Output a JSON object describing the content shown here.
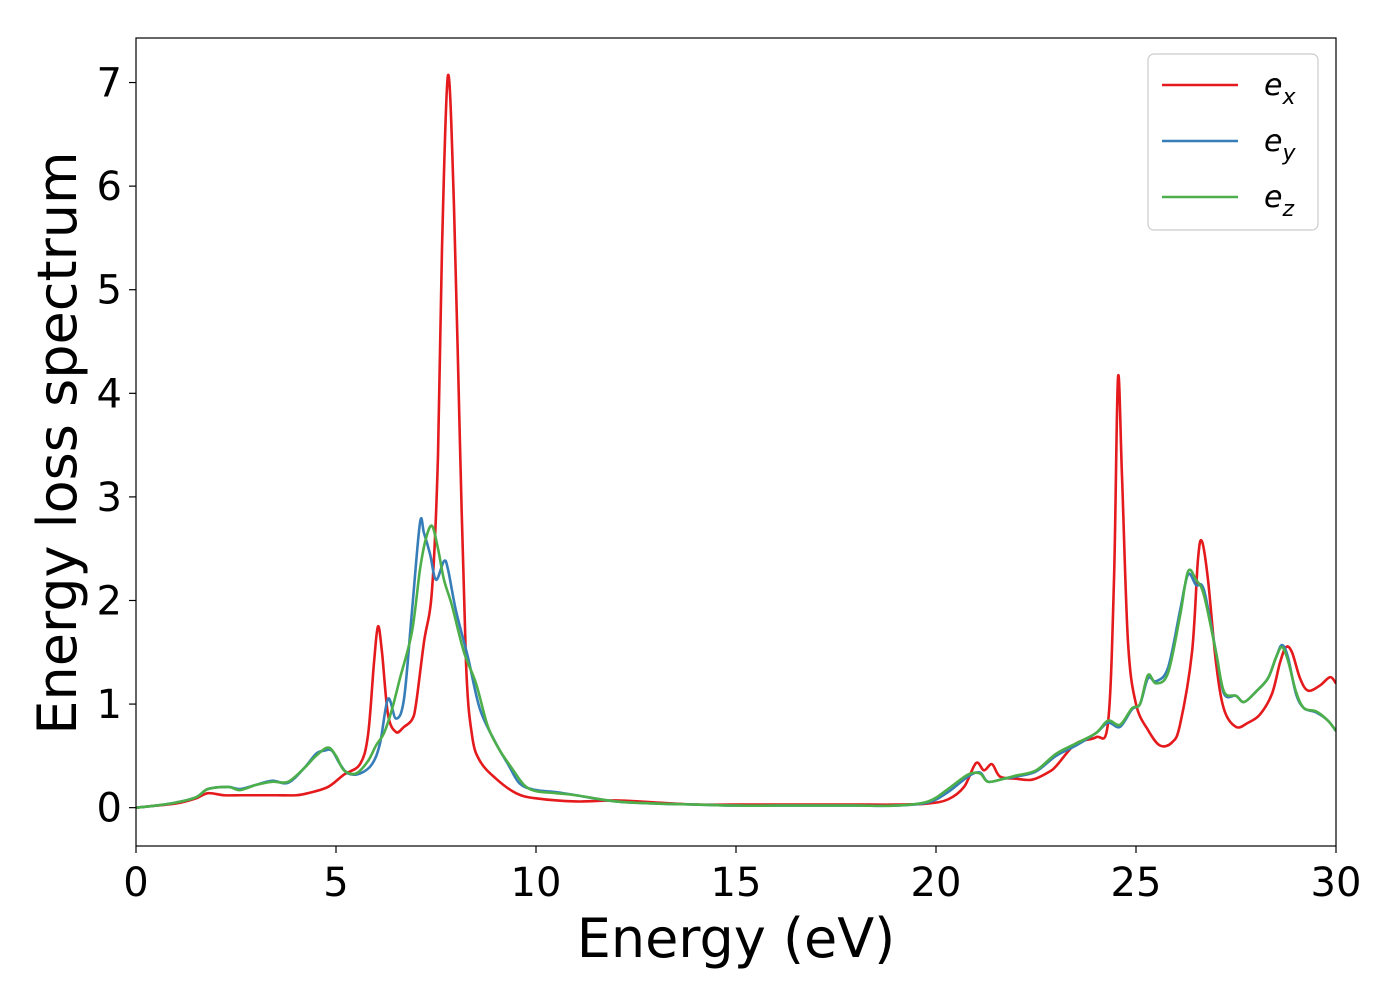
{
  "chart_data": {
    "type": "line",
    "xlabel": "Energy (eV)",
    "ylabel": "Energy loss spectrum",
    "xlim": [
      0,
      30
    ],
    "ylim": [
      -0.37,
      7.43
    ],
    "xticks": [
      0,
      5,
      10,
      15,
      20,
      25,
      30
    ],
    "yticks": [
      0,
      1,
      2,
      3,
      4,
      5,
      6,
      7
    ],
    "grid": false,
    "legend_position": "top-right",
    "series": [
      {
        "name": "e_x",
        "label_base": "e",
        "label_sub": "x",
        "color": "#e41a1c",
        "points": [
          [
            0,
            0
          ],
          [
            0.5,
            0.02
          ],
          [
            1.0,
            0.04
          ],
          [
            1.5,
            0.09
          ],
          [
            1.8,
            0.14
          ],
          [
            2.2,
            0.12
          ],
          [
            2.6,
            0.12
          ],
          [
            3.0,
            0.12
          ],
          [
            3.5,
            0.12
          ],
          [
            4.0,
            0.12
          ],
          [
            4.3,
            0.14
          ],
          [
            4.8,
            0.2
          ],
          [
            5.2,
            0.32
          ],
          [
            5.6,
            0.42
          ],
          [
            5.8,
            0.7
          ],
          [
            5.95,
            1.4
          ],
          [
            6.05,
            1.75
          ],
          [
            6.15,
            1.5
          ],
          [
            6.3,
            0.9
          ],
          [
            6.5,
            0.73
          ],
          [
            6.7,
            0.78
          ],
          [
            6.9,
            0.85
          ],
          [
            7.0,
            1.0
          ],
          [
            7.2,
            1.6
          ],
          [
            7.4,
            2.1
          ],
          [
            7.55,
            3.4
          ],
          [
            7.65,
            5.4
          ],
          [
            7.8,
            7.07
          ],
          [
            7.95,
            5.8
          ],
          [
            8.1,
            3.5
          ],
          [
            8.25,
            1.4
          ],
          [
            8.4,
            0.7
          ],
          [
            8.6,
            0.45
          ],
          [
            9.0,
            0.28
          ],
          [
            9.5,
            0.14
          ],
          [
            10.0,
            0.09
          ],
          [
            11.0,
            0.06
          ],
          [
            12.0,
            0.07
          ],
          [
            13.0,
            0.05
          ],
          [
            14.0,
            0.03
          ],
          [
            15.0,
            0.03
          ],
          [
            16.0,
            0.03
          ],
          [
            17.0,
            0.03
          ],
          [
            18.0,
            0.03
          ],
          [
            19.0,
            0.03
          ],
          [
            19.8,
            0.04
          ],
          [
            20.3,
            0.08
          ],
          [
            20.7,
            0.2
          ],
          [
            21.0,
            0.43
          ],
          [
            21.2,
            0.36
          ],
          [
            21.4,
            0.42
          ],
          [
            21.6,
            0.3
          ],
          [
            22.0,
            0.28
          ],
          [
            22.4,
            0.27
          ],
          [
            22.8,
            0.34
          ],
          [
            23.0,
            0.4
          ],
          [
            23.5,
            0.62
          ],
          [
            24.0,
            0.68
          ],
          [
            24.3,
            0.82
          ],
          [
            24.45,
            2.2
          ],
          [
            24.55,
            4.15
          ],
          [
            24.65,
            3.2
          ],
          [
            24.8,
            1.6
          ],
          [
            25.0,
            1.0
          ],
          [
            25.3,
            0.75
          ],
          [
            25.6,
            0.6
          ],
          [
            25.9,
            0.63
          ],
          [
            26.1,
            0.8
          ],
          [
            26.4,
            1.5
          ],
          [
            26.55,
            2.4
          ],
          [
            26.65,
            2.57
          ],
          [
            26.8,
            2.2
          ],
          [
            27.0,
            1.4
          ],
          [
            27.2,
            0.95
          ],
          [
            27.5,
            0.78
          ],
          [
            27.8,
            0.82
          ],
          [
            28.1,
            0.9
          ],
          [
            28.4,
            1.1
          ],
          [
            28.6,
            1.4
          ],
          [
            28.75,
            1.55
          ],
          [
            28.9,
            1.5
          ],
          [
            29.1,
            1.25
          ],
          [
            29.3,
            1.13
          ],
          [
            29.6,
            1.18
          ],
          [
            29.85,
            1.26
          ],
          [
            30.0,
            1.2
          ]
        ]
      },
      {
        "name": "e_y",
        "label_base": "e",
        "label_sub": "y",
        "color": "#377eb8",
        "points": [
          [
            0,
            0
          ],
          [
            0.5,
            0.02
          ],
          [
            1.0,
            0.05
          ],
          [
            1.5,
            0.1
          ],
          [
            1.8,
            0.18
          ],
          [
            2.3,
            0.2
          ],
          [
            2.6,
            0.18
          ],
          [
            3.0,
            0.22
          ],
          [
            3.4,
            0.26
          ],
          [
            3.8,
            0.24
          ],
          [
            4.2,
            0.38
          ],
          [
            4.5,
            0.52
          ],
          [
            4.7,
            0.55
          ],
          [
            4.9,
            0.55
          ],
          [
            5.1,
            0.42
          ],
          [
            5.3,
            0.33
          ],
          [
            5.6,
            0.33
          ],
          [
            5.9,
            0.42
          ],
          [
            6.1,
            0.62
          ],
          [
            6.3,
            1.05
          ],
          [
            6.5,
            0.86
          ],
          [
            6.7,
            1.05
          ],
          [
            6.9,
            1.9
          ],
          [
            7.1,
            2.75
          ],
          [
            7.2,
            2.65
          ],
          [
            7.35,
            2.45
          ],
          [
            7.5,
            2.2
          ],
          [
            7.7,
            2.38
          ],
          [
            7.8,
            2.3
          ],
          [
            8.0,
            1.9
          ],
          [
            8.3,
            1.45
          ],
          [
            8.6,
            0.95
          ],
          [
            9.0,
            0.62
          ],
          [
            9.3,
            0.42
          ],
          [
            9.6,
            0.23
          ],
          [
            10.0,
            0.17
          ],
          [
            10.5,
            0.15
          ],
          [
            11.0,
            0.12
          ],
          [
            12.0,
            0.06
          ],
          [
            13.0,
            0.04
          ],
          [
            14.0,
            0.03
          ],
          [
            15.0,
            0.02
          ],
          [
            16.0,
            0.02
          ],
          [
            17.0,
            0.02
          ],
          [
            18.0,
            0.02
          ],
          [
            19.0,
            0.02
          ],
          [
            19.8,
            0.05
          ],
          [
            20.3,
            0.15
          ],
          [
            20.8,
            0.3
          ],
          [
            21.1,
            0.34
          ],
          [
            21.3,
            0.25
          ],
          [
            21.7,
            0.28
          ],
          [
            22.0,
            0.3
          ],
          [
            22.5,
            0.35
          ],
          [
            23.0,
            0.5
          ],
          [
            23.5,
            0.6
          ],
          [
            24.0,
            0.72
          ],
          [
            24.3,
            0.82
          ],
          [
            24.6,
            0.78
          ],
          [
            24.9,
            0.95
          ],
          [
            25.1,
            1.0
          ],
          [
            25.3,
            1.25
          ],
          [
            25.5,
            1.22
          ],
          [
            25.8,
            1.35
          ],
          [
            26.1,
            1.9
          ],
          [
            26.3,
            2.25
          ],
          [
            26.5,
            2.15
          ],
          [
            26.7,
            2.1
          ],
          [
            27.0,
            1.5
          ],
          [
            27.2,
            1.1
          ],
          [
            27.5,
            1.08
          ],
          [
            27.7,
            1.02
          ],
          [
            28.0,
            1.12
          ],
          [
            28.3,
            1.25
          ],
          [
            28.5,
            1.45
          ],
          [
            28.65,
            1.57
          ],
          [
            28.8,
            1.45
          ],
          [
            29.0,
            1.1
          ],
          [
            29.2,
            0.96
          ],
          [
            29.5,
            0.92
          ],
          [
            29.8,
            0.84
          ],
          [
            30.0,
            0.74
          ]
        ]
      },
      {
        "name": "e_z",
        "label_base": "e",
        "label_sub": "z",
        "color": "#4daf4a",
        "points": [
          [
            0,
            0
          ],
          [
            0.5,
            0.02
          ],
          [
            1.0,
            0.05
          ],
          [
            1.5,
            0.1
          ],
          [
            1.8,
            0.18
          ],
          [
            2.3,
            0.2
          ],
          [
            2.6,
            0.17
          ],
          [
            3.0,
            0.22
          ],
          [
            3.4,
            0.25
          ],
          [
            3.8,
            0.25
          ],
          [
            4.2,
            0.38
          ],
          [
            4.5,
            0.5
          ],
          [
            4.8,
            0.58
          ],
          [
            5.0,
            0.5
          ],
          [
            5.2,
            0.36
          ],
          [
            5.5,
            0.33
          ],
          [
            5.8,
            0.45
          ],
          [
            6.0,
            0.6
          ],
          [
            6.2,
            0.72
          ],
          [
            6.4,
            0.95
          ],
          [
            6.6,
            1.25
          ],
          [
            6.9,
            1.7
          ],
          [
            7.1,
            2.3
          ],
          [
            7.25,
            2.6
          ],
          [
            7.4,
            2.72
          ],
          [
            7.55,
            2.5
          ],
          [
            7.7,
            2.2
          ],
          [
            7.9,
            1.95
          ],
          [
            8.2,
            1.5
          ],
          [
            8.5,
            1.2
          ],
          [
            8.8,
            0.78
          ],
          [
            9.1,
            0.55
          ],
          [
            9.4,
            0.38
          ],
          [
            9.7,
            0.22
          ],
          [
            10.0,
            0.16
          ],
          [
            10.5,
            0.14
          ],
          [
            11.0,
            0.12
          ],
          [
            12.0,
            0.06
          ],
          [
            13.0,
            0.04
          ],
          [
            14.0,
            0.03
          ],
          [
            15.0,
            0.02
          ],
          [
            16.0,
            0.02
          ],
          [
            17.0,
            0.02
          ],
          [
            18.0,
            0.02
          ],
          [
            19.0,
            0.02
          ],
          [
            19.8,
            0.06
          ],
          [
            20.3,
            0.18
          ],
          [
            20.8,
            0.32
          ],
          [
            21.1,
            0.33
          ],
          [
            21.3,
            0.25
          ],
          [
            21.7,
            0.28
          ],
          [
            22.0,
            0.31
          ],
          [
            22.5,
            0.36
          ],
          [
            23.0,
            0.52
          ],
          [
            23.5,
            0.62
          ],
          [
            24.0,
            0.72
          ],
          [
            24.3,
            0.84
          ],
          [
            24.6,
            0.8
          ],
          [
            24.9,
            0.96
          ],
          [
            25.1,
            1.0
          ],
          [
            25.3,
            1.28
          ],
          [
            25.5,
            1.2
          ],
          [
            25.8,
            1.3
          ],
          [
            26.1,
            1.85
          ],
          [
            26.3,
            2.28
          ],
          [
            26.5,
            2.2
          ],
          [
            26.7,
            2.05
          ],
          [
            27.0,
            1.5
          ],
          [
            27.2,
            1.12
          ],
          [
            27.5,
            1.08
          ],
          [
            27.7,
            1.02
          ],
          [
            28.0,
            1.12
          ],
          [
            28.3,
            1.25
          ],
          [
            28.5,
            1.45
          ],
          [
            28.65,
            1.55
          ],
          [
            28.8,
            1.42
          ],
          [
            29.0,
            1.12
          ],
          [
            29.2,
            0.96
          ],
          [
            29.5,
            0.93
          ],
          [
            29.8,
            0.84
          ],
          [
            30.0,
            0.74
          ]
        ]
      }
    ]
  }
}
